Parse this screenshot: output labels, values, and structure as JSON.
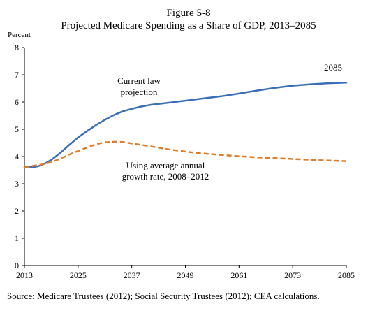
{
  "chart_data": {
    "type": "line",
    "figure_label": "Figure 5-8",
    "title": "Projected Medicare Spending as a Share of GDP, 2013–2085",
    "ylabel": "Percent",
    "xlabel": "",
    "xlim": [
      2013,
      2085
    ],
    "ylim": [
      0,
      8
    ],
    "xticks": [
      2013,
      2025,
      2037,
      2049,
      2061,
      2073,
      2085
    ],
    "yticks": [
      0,
      1,
      2,
      3,
      4,
      5,
      6,
      7,
      8
    ],
    "grid": false,
    "series": [
      {
        "name": "Current law projection",
        "label_lines": [
          "Current law",
          "projection"
        ],
        "color": "#3a6fb8",
        "dash": "solid",
        "x": [
          2013,
          2014,
          2015,
          2016,
          2017,
          2018,
          2019,
          2020,
          2021,
          2023,
          2025,
          2027,
          2029,
          2031,
          2033,
          2035,
          2037,
          2039,
          2041,
          2045,
          2049,
          2053,
          2057,
          2061,
          2065,
          2069,
          2073,
          2077,
          2081,
          2085
        ],
        "y": [
          3.6,
          3.63,
          3.61,
          3.64,
          3.7,
          3.78,
          3.88,
          4.0,
          4.13,
          4.42,
          4.7,
          4.93,
          5.15,
          5.35,
          5.52,
          5.66,
          5.75,
          5.83,
          5.89,
          5.97,
          6.05,
          6.13,
          6.21,
          6.31,
          6.42,
          6.52,
          6.6,
          6.65,
          6.69,
          6.71
        ]
      },
      {
        "name": "Using average annual growth rate, 2008–2012",
        "label_lines": [
          "Using average annual",
          "growth rate, 2008–2012"
        ],
        "color": "#e07b28",
        "dash": "dashed",
        "x": [
          2013,
          2015,
          2017,
          2019,
          2021,
          2023,
          2025,
          2027,
          2029,
          2031,
          2033,
          2035,
          2037,
          2041,
          2045,
          2049,
          2053,
          2057,
          2061,
          2065,
          2069,
          2073,
          2077,
          2081,
          2085
        ],
        "y": [
          3.6,
          3.66,
          3.71,
          3.79,
          3.92,
          4.07,
          4.2,
          4.33,
          4.45,
          4.52,
          4.54,
          4.53,
          4.48,
          4.38,
          4.27,
          4.18,
          4.11,
          4.06,
          4.01,
          3.97,
          3.94,
          3.91,
          3.88,
          3.85,
          3.83
        ]
      }
    ],
    "annotations": [
      {
        "text": "2085",
        "target_x": 2085
      }
    ],
    "source": "Source: Medicare Trustees (2012); Social Security Trustees (2012); CEA calculations."
  }
}
